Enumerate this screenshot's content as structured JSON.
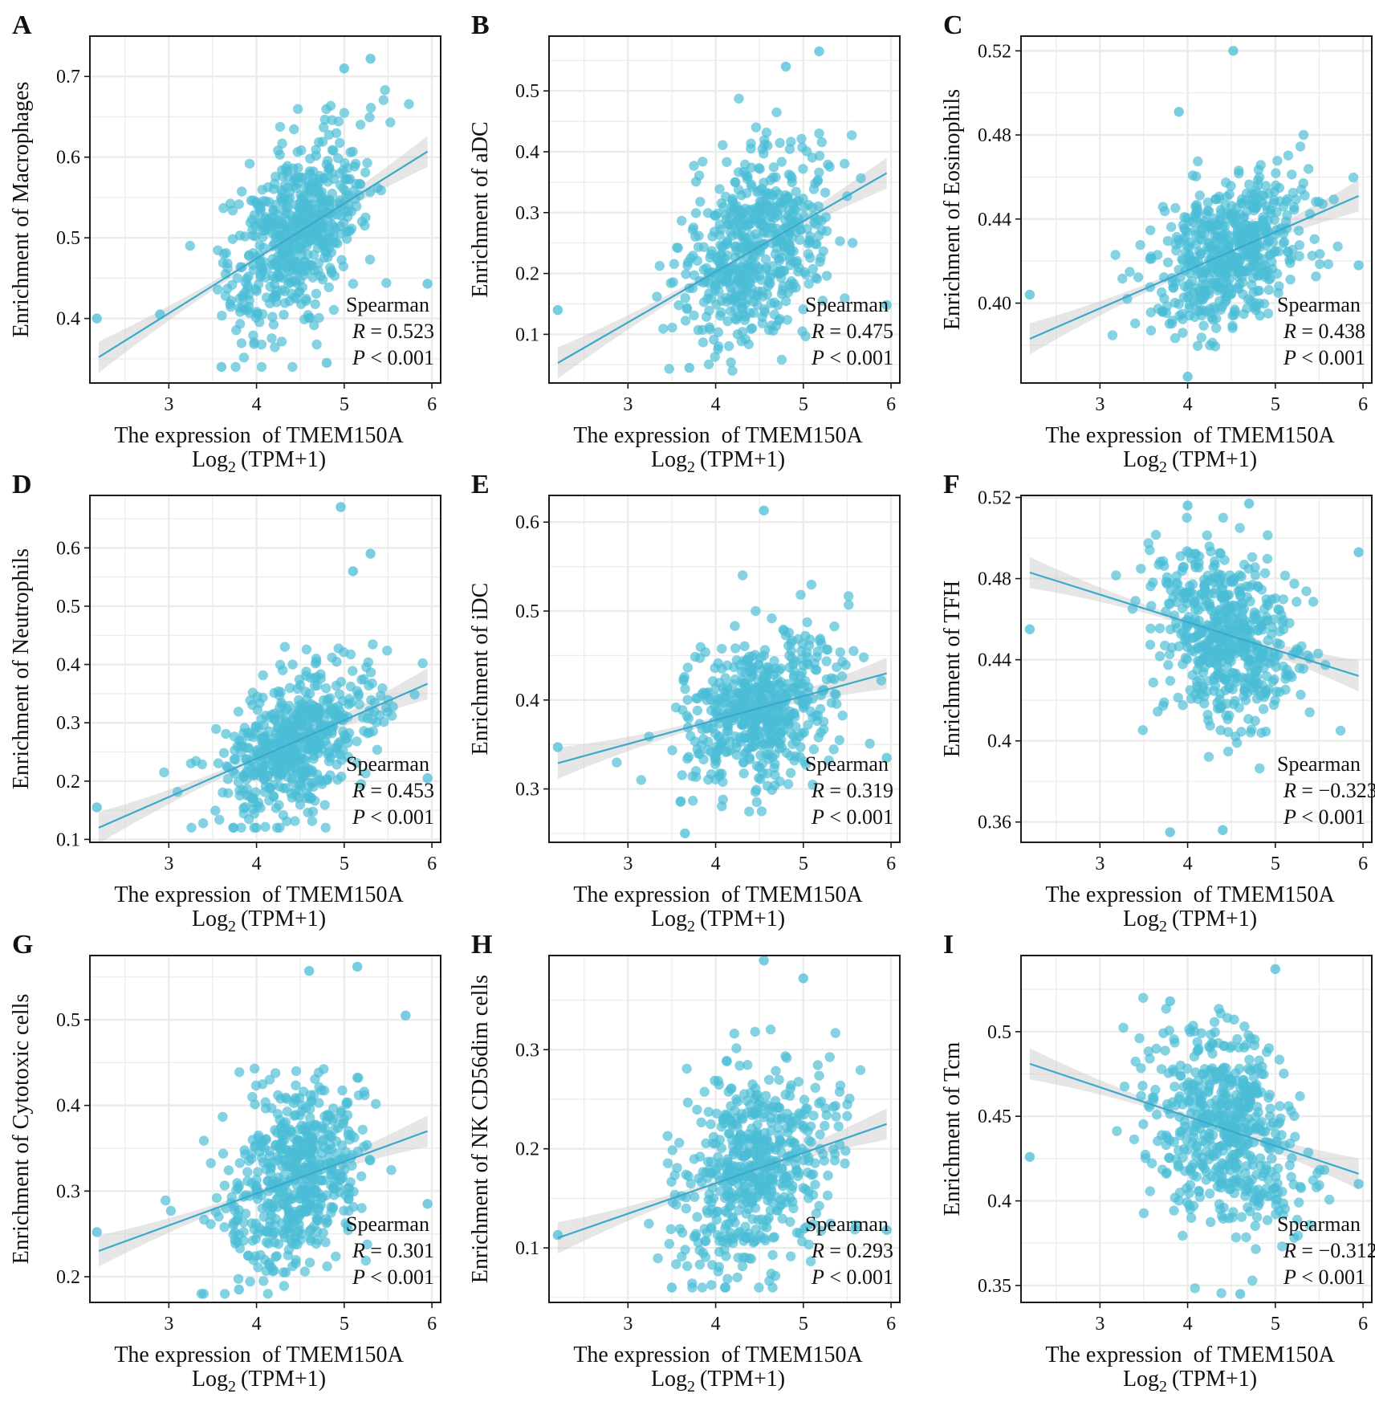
{
  "figure": {
    "colors": {
      "point": "#4bbcd6",
      "line": "#3aa9cc",
      "band": "#c8c8c8",
      "grid": "#ebebeb",
      "frame": "#1a1a1a"
    }
  },
  "chart_data": [
    {
      "type": "scatter",
      "panel": "A",
      "xlabel": "The expression of TMEM150A",
      "xlabel_sub": "Log2 (TPM+1)",
      "ylabel": "Enrichment of Macrophages",
      "xticks": [
        3,
        4,
        5,
        6
      ],
      "xlim": [
        2.1,
        6.1
      ],
      "yticks": [
        0.4,
        0.5,
        0.6,
        0.7
      ],
      "ylim": [
        0.32,
        0.75
      ],
      "stat_method": "Spearman",
      "R": "0.523",
      "P": "< 0.001",
      "trend": {
        "x": [
          2.2,
          5.95
        ],
        "y": [
          0.352,
          0.607
        ]
      },
      "sample": {
        "x_range": [
          2.2,
          5.95
        ],
        "y_range": [
          0.34,
          0.72
        ],
        "spread": 0.055
      },
      "points": [
        [
          2.18,
          0.4
        ],
        [
          2.9,
          0.405
        ],
        [
          3.6,
          0.34
        ],
        [
          5.3,
          0.722
        ],
        [
          5.95,
          0.443
        ],
        [
          5.0,
          0.71
        ],
        [
          4.8,
          0.345
        ]
      ]
    },
    {
      "type": "scatter",
      "panel": "B",
      "xlabel": "The expression of TMEM150A",
      "xlabel_sub": "Log2 (TPM+1)",
      "ylabel": "Enrichment of aDC",
      "xticks": [
        3,
        4,
        5,
        6
      ],
      "xlim": [
        2.1,
        6.1
      ],
      "yticks": [
        0.1,
        0.2,
        0.3,
        0.4,
        0.5
      ],
      "ylim": [
        0.02,
        0.59
      ],
      "stat_method": "Spearman",
      "R": "0.475",
      "P": "< 0.001",
      "trend": {
        "x": [
          2.2,
          5.95
        ],
        "y": [
          0.053,
          0.365
        ]
      },
      "sample": {
        "x_range": [
          2.2,
          5.95
        ],
        "y_range": [
          0.04,
          0.56
        ],
        "spread": 0.075
      },
      "points": [
        [
          2.2,
          0.14
        ],
        [
          5.18,
          0.565
        ],
        [
          3.7,
          0.045
        ],
        [
          5.95,
          0.148
        ],
        [
          4.8,
          0.54
        ]
      ]
    },
    {
      "type": "scatter",
      "panel": "C",
      "xlabel": "The expression of TMEM150A",
      "xlabel_sub": "Log2 (TPM+1)",
      "ylabel": "Enrichment of Eosinophils",
      "xticks": [
        3,
        4,
        5,
        6
      ],
      "xlim": [
        2.1,
        6.1
      ],
      "yticks": [
        0.4,
        0.44,
        0.48,
        0.52
      ],
      "ylim": [
        0.362,
        0.527
      ],
      "stat_method": "Spearman",
      "R": "0.438",
      "P": "< 0.001",
      "trend": {
        "x": [
          2.2,
          5.95
        ],
        "y": [
          0.383,
          0.451
        ]
      },
      "sample": {
        "x_range": [
          2.2,
          5.95
        ],
        "y_range": [
          0.37,
          0.48
        ],
        "spread": 0.017
      },
      "points": [
        [
          2.2,
          0.404
        ],
        [
          4.52,
          0.52
        ],
        [
          3.9,
          0.491
        ],
        [
          5.95,
          0.418
        ],
        [
          4.0,
          0.365
        ]
      ]
    },
    {
      "type": "scatter",
      "panel": "D",
      "xlabel": "The expression of TMEM150A",
      "xlabel_sub": "Log2 (TPM+1)",
      "ylabel": "Enrichment of Neutrophils",
      "xticks": [
        3,
        4,
        5,
        6
      ],
      "xlim": [
        2.1,
        6.1
      ],
      "yticks": [
        0.1,
        0.2,
        0.3,
        0.4,
        0.5,
        0.6
      ],
      "ylim": [
        0.095,
        0.69
      ],
      "stat_method": "Spearman",
      "R": "0.453",
      "P": "< 0.001",
      "trend": {
        "x": [
          2.2,
          5.95
        ],
        "y": [
          0.12,
          0.367
        ]
      },
      "sample": {
        "x_range": [
          2.2,
          5.95
        ],
        "y_range": [
          0.12,
          0.45
        ],
        "spread": 0.06
      },
      "points": [
        [
          2.18,
          0.155
        ],
        [
          4.96,
          0.67
        ],
        [
          5.3,
          0.59
        ],
        [
          5.1,
          0.56
        ],
        [
          5.95,
          0.205
        ]
      ]
    },
    {
      "type": "scatter",
      "panel": "E",
      "xlabel": "The expression of TMEM150A",
      "xlabel_sub": "Log2 (TPM+1)",
      "ylabel": "Enrichment of iDC",
      "xticks": [
        3,
        4,
        5,
        6
      ],
      "xlim": [
        2.1,
        6.1
      ],
      "yticks": [
        0.3,
        0.4,
        0.5,
        0.6
      ],
      "ylim": [
        0.24,
        0.63
      ],
      "stat_method": "Spearman",
      "R": "0.319",
      "P": "< 0.001",
      "trend": {
        "x": [
          2.2,
          5.95
        ],
        "y": [
          0.329,
          0.43
        ]
      },
      "sample": {
        "x_range": [
          2.2,
          5.95
        ],
        "y_range": [
          0.25,
          0.55
        ],
        "spread": 0.04
      },
      "points": [
        [
          2.2,
          0.347
        ],
        [
          4.55,
          0.613
        ],
        [
          3.65,
          0.25
        ],
        [
          5.95,
          0.335
        ]
      ]
    },
    {
      "type": "scatter",
      "panel": "F",
      "xlabel": "The expression of TMEM150A",
      "xlabel_sub": "Log2 (TPM+1)",
      "ylabel": "Enrichment of TFH",
      "xticks": [
        3,
        4,
        5,
        6
      ],
      "xlim": [
        2.1,
        6.1
      ],
      "yticks": [
        0.36,
        0.4,
        0.44,
        0.48,
        0.52
      ],
      "ylim": [
        0.35,
        0.521
      ],
      "stat_method": "Spearman",
      "R": "−0.323",
      "P": "< 0.001",
      "trend": {
        "x": [
          2.2,
          5.95
        ],
        "y": [
          0.483,
          0.432
        ]
      },
      "sample": {
        "x_range": [
          2.2,
          5.95
        ],
        "y_range": [
          0.36,
          0.51
        ],
        "spread": 0.022
      },
      "points": [
        [
          2.2,
          0.455
        ],
        [
          4.0,
          0.516
        ],
        [
          4.7,
          0.517
        ],
        [
          3.8,
          0.355
        ],
        [
          4.4,
          0.356
        ],
        [
          5.95,
          0.493
        ]
      ]
    },
    {
      "type": "scatter",
      "panel": "G",
      "xlabel": "The expression of TMEM150A",
      "xlabel_sub": "Log2 (TPM+1)",
      "ylabel": "Enrichment of Cytotoxic cells",
      "xticks": [
        3,
        4,
        5,
        6
      ],
      "xlim": [
        2.1,
        6.1
      ],
      "yticks": [
        0.2,
        0.3,
        0.4,
        0.5
      ],
      "ylim": [
        0.17,
        0.575
      ],
      "stat_method": "Spearman",
      "R": "0.301",
      "P": "< 0.001",
      "trend": {
        "x": [
          2.2,
          5.95
        ],
        "y": [
          0.23,
          0.37
        ]
      },
      "sample": {
        "x_range": [
          2.2,
          5.95
        ],
        "y_range": [
          0.18,
          0.56
        ],
        "spread": 0.055
      },
      "points": [
        [
          2.18,
          0.252
        ],
        [
          4.6,
          0.557
        ],
        [
          5.15,
          0.562
        ],
        [
          3.8,
          0.185
        ],
        [
          5.95,
          0.285
        ],
        [
          5.7,
          0.505
        ]
      ]
    },
    {
      "type": "scatter",
      "panel": "H",
      "xlabel": "The expression of TMEM150A",
      "xlabel_sub": "Log2 (TPM+1)",
      "ylabel": "Enrichment of NK CD56dim cells",
      "xticks": [
        3,
        4,
        5,
        6
      ],
      "xlim": [
        2.1,
        6.1
      ],
      "yticks": [
        0.1,
        0.2,
        0.3
      ],
      "ylim": [
        0.045,
        0.395
      ],
      "stat_method": "Spearman",
      "R": "0.293",
      "P": "< 0.001",
      "trend": {
        "x": [
          2.2,
          5.95
        ],
        "y": [
          0.11,
          0.225
        ]
      },
      "sample": {
        "x_range": [
          2.2,
          5.95
        ],
        "y_range": [
          0.06,
          0.38
        ],
        "spread": 0.05
      },
      "points": [
        [
          2.2,
          0.113
        ],
        [
          4.55,
          0.39
        ],
        [
          5.0,
          0.372
        ],
        [
          3.5,
          0.06
        ],
        [
          5.95,
          0.118
        ]
      ]
    },
    {
      "type": "scatter",
      "panel": "I",
      "xlabel": "The expression of TMEM150A",
      "xlabel_sub": "Log2 (TPM+1)",
      "ylabel": "Enrichment of Tcm",
      "xticks": [
        3,
        4,
        5,
        6
      ],
      "xlim": [
        2.1,
        6.1
      ],
      "yticks": [
        0.35,
        0.4,
        0.45,
        0.5
      ],
      "ylim": [
        0.34,
        0.545
      ],
      "stat_method": "Spearman",
      "R": "−0.312",
      "P": "< 0.001",
      "trend": {
        "x": [
          2.2,
          5.95
        ],
        "y": [
          0.481,
          0.416
        ]
      },
      "sample": {
        "x_range": [
          2.2,
          5.95
        ],
        "y_range": [
          0.345,
          0.52
        ],
        "spread": 0.028
      },
      "points": [
        [
          2.2,
          0.426
        ],
        [
          5.0,
          0.537
        ],
        [
          3.8,
          0.518
        ],
        [
          4.6,
          0.345
        ],
        [
          5.95,
          0.41
        ]
      ]
    }
  ]
}
